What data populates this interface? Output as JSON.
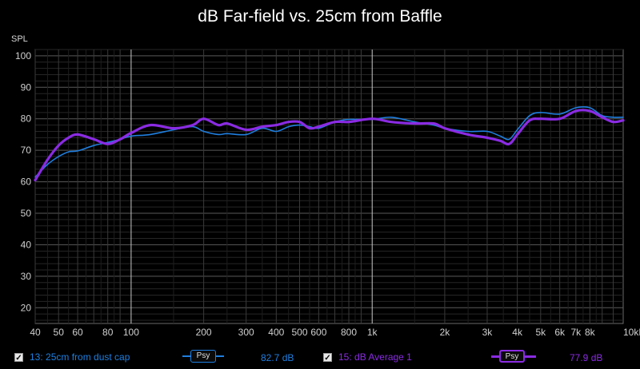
{
  "title": "dB Far-field vs. 25cm from Baffle",
  "y_axis_label": "SPL",
  "legend": [
    {
      "id": "13",
      "label": "13: 25cm from dust cap",
      "badge": "Psy",
      "value": "82.7 dB",
      "color": "#1f7fe0",
      "checked": true
    },
    {
      "id": "15",
      "label": "15: dB Average 1",
      "badge": "Psy",
      "value": "77.9 dB",
      "color": "#8a2be2",
      "checked": true
    }
  ],
  "chart_data": {
    "type": "line",
    "title": "dB Far-field vs. 25cm from Baffle",
    "xlabel": "",
    "ylabel": "SPL",
    "x_scale": "log",
    "xlim": [
      40,
      11000
    ],
    "ylim": [
      15,
      102
    ],
    "grid": true,
    "y_ticks": [
      20,
      30,
      40,
      50,
      60,
      70,
      80,
      90,
      100
    ],
    "x_ticks": [
      {
        "value": 40,
        "label": "40"
      },
      {
        "value": 50,
        "label": "50"
      },
      {
        "value": 60,
        "label": "60"
      },
      {
        "value": 80,
        "label": "80"
      },
      {
        "value": 100,
        "label": "100"
      },
      {
        "value": 200,
        "label": "200"
      },
      {
        "value": 300,
        "label": "300"
      },
      {
        "value": 400,
        "label": "400"
      },
      {
        "value": 500,
        "label": "500"
      },
      {
        "value": 600,
        "label": "600"
      },
      {
        "value": 800,
        "label": "800"
      },
      {
        "value": 1000,
        "label": "1k"
      },
      {
        "value": 2000,
        "label": "2k"
      },
      {
        "value": 3000,
        "label": "3k"
      },
      {
        "value": 4000,
        "label": "4k"
      },
      {
        "value": 5000,
        "label": "5k"
      },
      {
        "value": 6000,
        "label": "6k"
      },
      {
        "value": 7000,
        "label": "7k"
      },
      {
        "value": 8000,
        "label": "8k"
      },
      {
        "value": 10000,
        "label": "10kHz"
      }
    ],
    "series": [
      {
        "name": "13: 25cm from dust cap",
        "color": "#1f7fe0",
        "x": [
          40,
          45,
          50,
          55,
          60,
          70,
          80,
          90,
          100,
          120,
          150,
          180,
          200,
          230,
          250,
          300,
          350,
          400,
          450,
          500,
          550,
          600,
          700,
          800,
          1000,
          1200,
          1500,
          1800,
          2000,
          2500,
          3000,
          3400,
          3700,
          4000,
          4500,
          5000,
          6000,
          7000,
          8000,
          9000,
          10000,
          11000
        ],
        "values": [
          61.5,
          65.5,
          68,
          69.5,
          69.8,
          71.5,
          72.5,
          73.5,
          74.5,
          75,
          76.5,
          77.5,
          76,
          75,
          75.3,
          75,
          77,
          76,
          77.5,
          78,
          77.5,
          77,
          79,
          79.8,
          79.8,
          80.5,
          79,
          78,
          77,
          76,
          76,
          74.5,
          73.5,
          76.5,
          81,
          82,
          81.5,
          83.5,
          83.5,
          81,
          80.5,
          80.5
        ]
      },
      {
        "name": "15: dB Average 1",
        "color": "#8a2be2",
        "x": [
          40,
          45,
          50,
          55,
          60,
          70,
          80,
          90,
          100,
          120,
          150,
          180,
          200,
          230,
          250,
          300,
          350,
          400,
          450,
          500,
          550,
          600,
          700,
          800,
          1000,
          1200,
          1500,
          1800,
          2000,
          2500,
          3000,
          3400,
          3700,
          4000,
          4500,
          5000,
          6000,
          7000,
          8000,
          9000,
          10000,
          11000
        ],
        "values": [
          60.5,
          67,
          71.5,
          74,
          75,
          73.5,
          72,
          73.5,
          75.5,
          78,
          77,
          78,
          80,
          78,
          78.5,
          76.5,
          77.5,
          78,
          79,
          79,
          77,
          77.5,
          79,
          79,
          80,
          79,
          78.5,
          78.5,
          77,
          75,
          74,
          73,
          72,
          75,
          79.5,
          80,
          80,
          82.5,
          82.5,
          80.5,
          79,
          79.5
        ]
      }
    ]
  }
}
